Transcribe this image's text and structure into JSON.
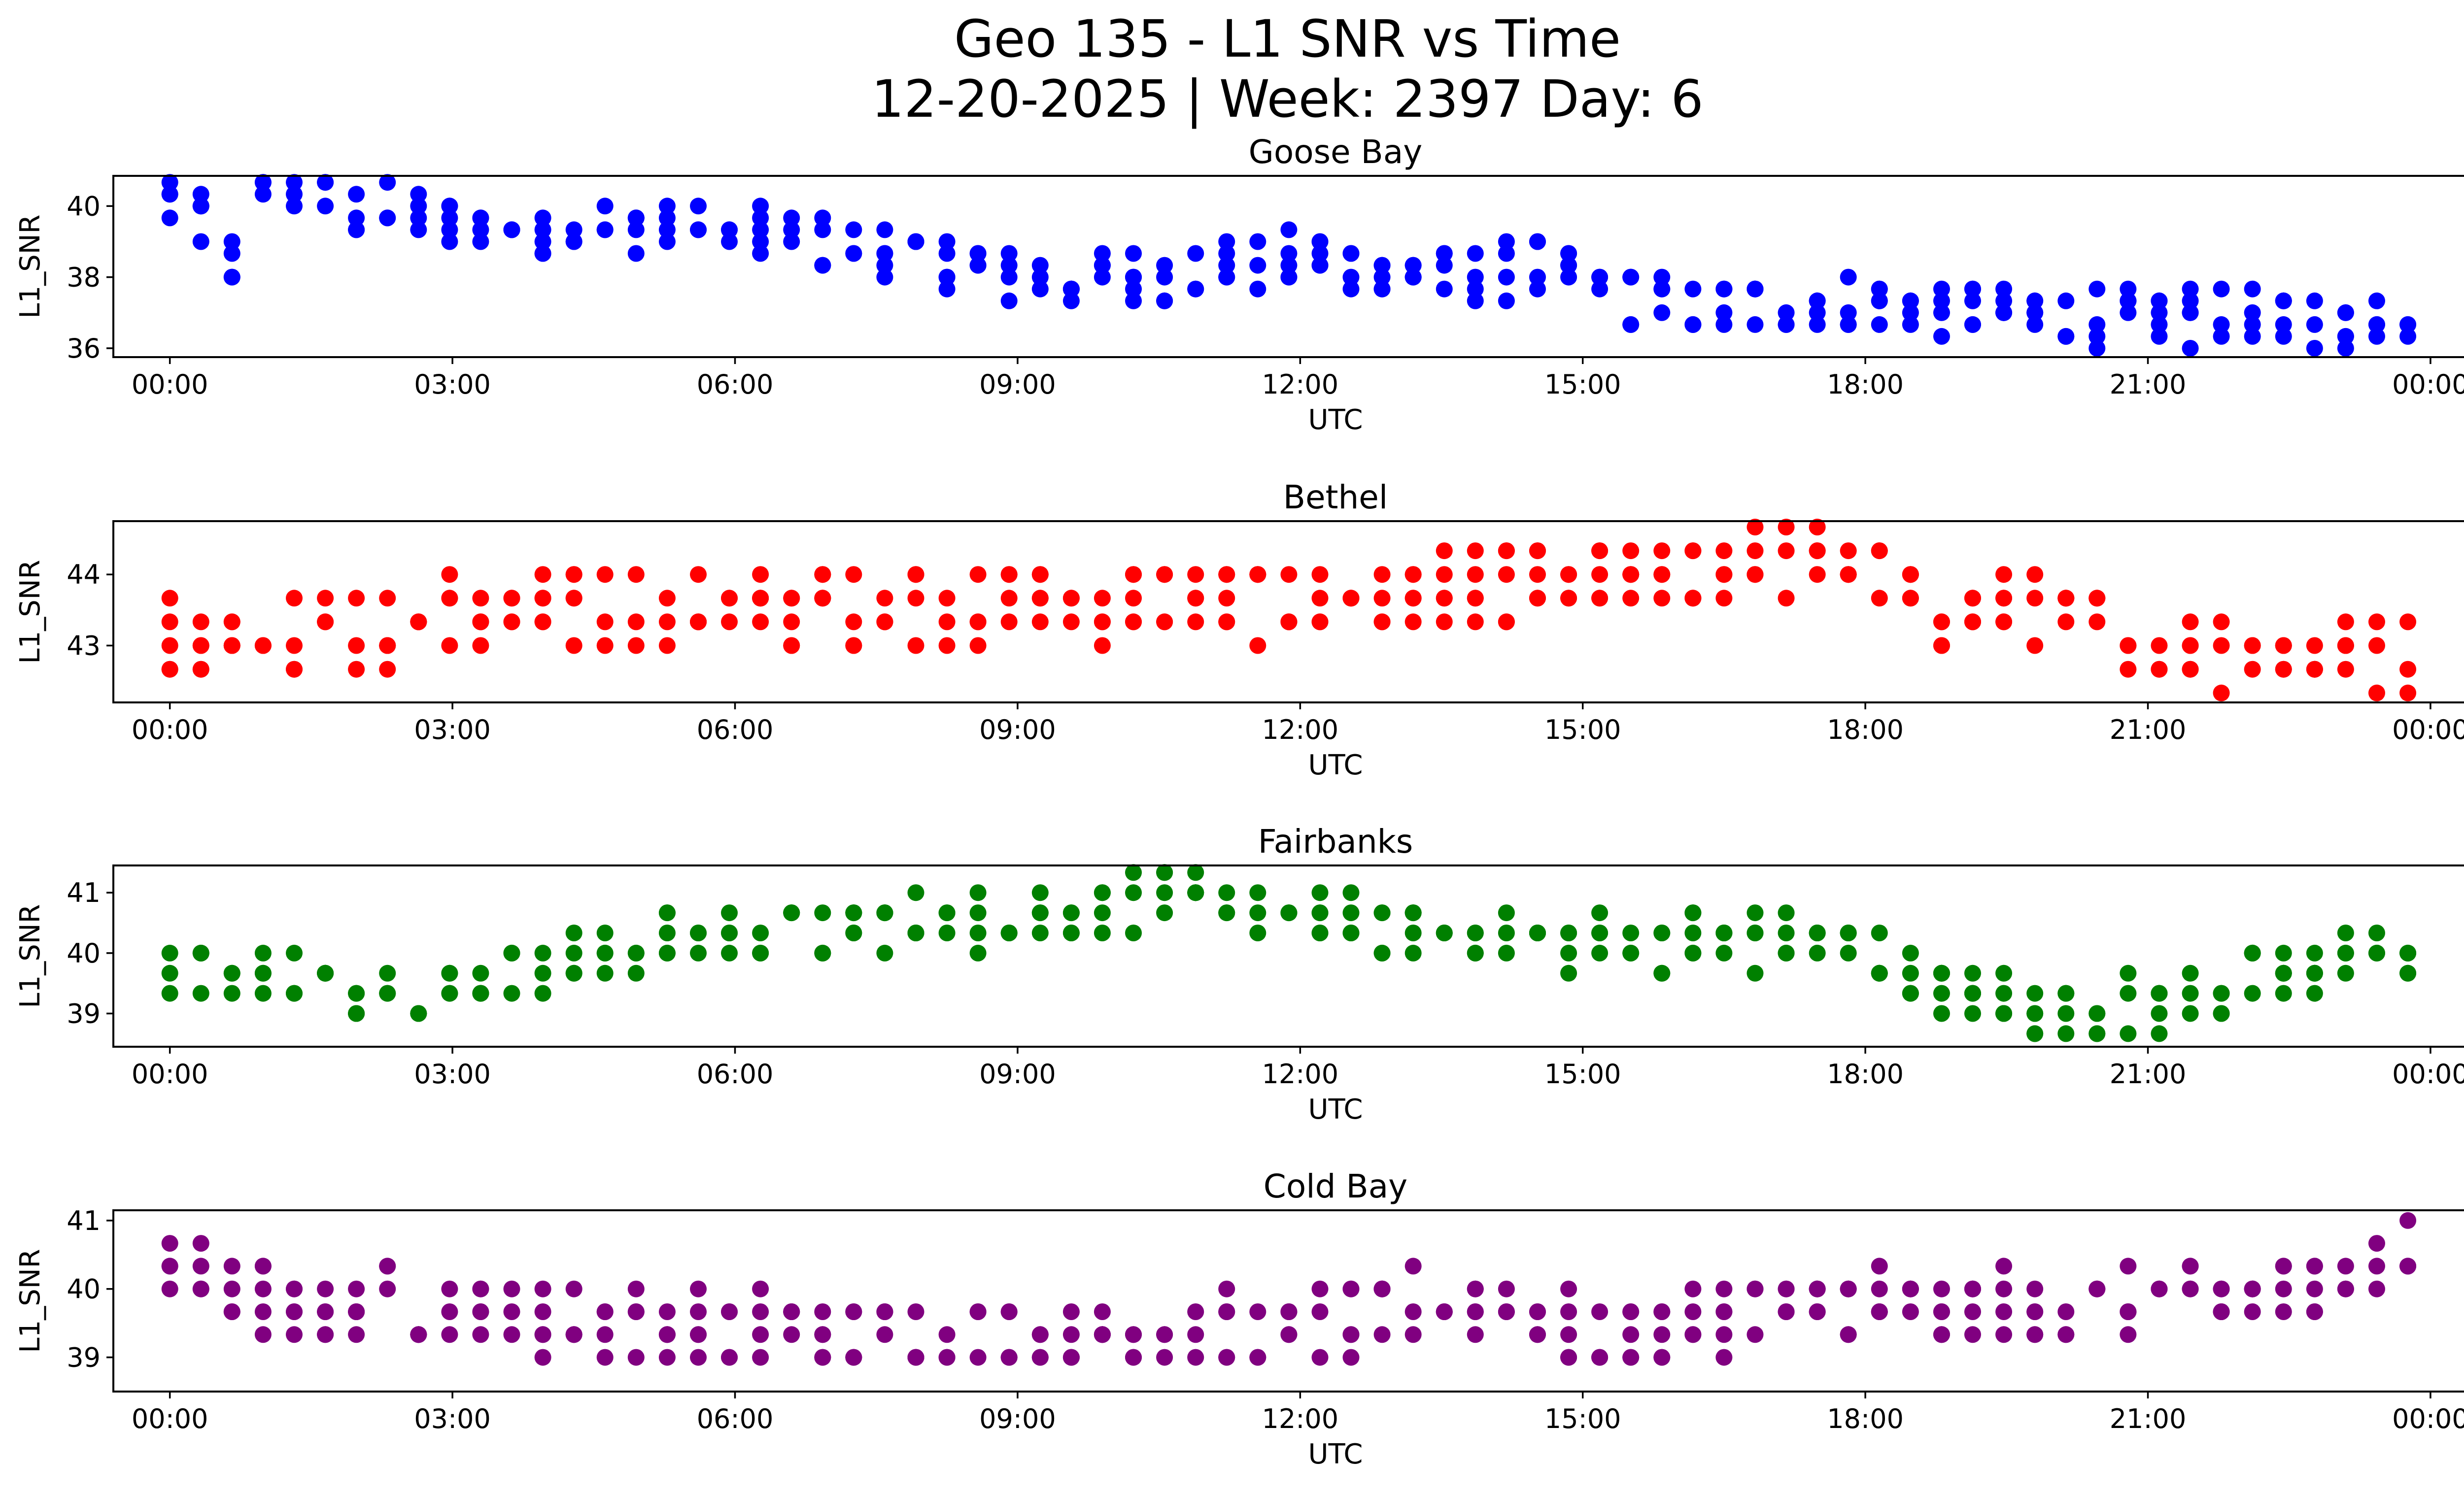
{
  "title_line1": "Geo 135 - L1 SNR vs Time",
  "title_line2": "12-20-2025 | Week: 2397 Day: 6",
  "chart_data": [
    {
      "type": "scatter",
      "title": "Goose Bay",
      "xlabel": "UTC",
      "ylabel": "L1_SNR",
      "color": "#0000ff",
      "xlim": [
        -0.6,
        25.35
      ],
      "ylim": [
        35.75,
        40.85
      ],
      "yticks": [
        36,
        38,
        40
      ],
      "xticks": [
        0,
        3,
        6,
        9,
        12,
        15,
        18,
        21,
        24
      ],
      "xticklabels": [
        "00:00",
        "03:00",
        "06:00",
        "09:00",
        "12:00",
        "15:00",
        "18:00",
        "21:00",
        "00:00"
      ],
      "trend": [
        [
          0,
          40.0
        ],
        [
          0.4,
          39.5
        ],
        [
          0.6,
          38.0
        ],
        [
          0.8,
          39.8
        ],
        [
          1.2,
          40.3
        ],
        [
          2.0,
          39.9
        ],
        [
          3.0,
          39.6
        ],
        [
          4.0,
          39.3
        ],
        [
          5.0,
          39.5
        ],
        [
          6.0,
          39.2
        ],
        [
          7.0,
          38.9
        ],
        [
          8.0,
          38.6
        ],
        [
          9.0,
          38.0
        ],
        [
          10.0,
          37.9
        ],
        [
          11.0,
          38.3
        ],
        [
          12.0,
          38.6
        ],
        [
          13.0,
          38.2
        ],
        [
          14.0,
          38.0
        ],
        [
          14.6,
          38.4
        ],
        [
          15.0,
          37.8
        ],
        [
          16.0,
          37.1
        ],
        [
          17.0,
          37.3
        ],
        [
          18.0,
          37.3
        ],
        [
          19.0,
          37.2
        ],
        [
          20.0,
          36.9
        ],
        [
          21.0,
          36.9
        ],
        [
          22.0,
          36.9
        ],
        [
          23.0,
          36.8
        ],
        [
          24.0,
          37.1
        ]
      ],
      "step": 0.33,
      "spread": 0.8
    },
    {
      "type": "scatter",
      "title": "Bethel",
      "xlabel": "UTC",
      "ylabel": "L1_SNR",
      "color": "#ff0000",
      "xlim": [
        -0.6,
        25.35
      ],
      "ylim": [
        42.2,
        44.75
      ],
      "yticks": [
        43,
        44
      ],
      "xticks": [
        0,
        3,
        6,
        9,
        12,
        15,
        18,
        21,
        24
      ],
      "xticklabels": [
        "00:00",
        "03:00",
        "06:00",
        "09:00",
        "12:00",
        "15:00",
        "18:00",
        "21:00",
        "00:00"
      ],
      "trend": [
        [
          0,
          43.15
        ],
        [
          2.5,
          43.2
        ],
        [
          3.0,
          43.5
        ],
        [
          6.0,
          43.55
        ],
        [
          9.0,
          43.6
        ],
        [
          12.0,
          43.6
        ],
        [
          14.0,
          43.75
        ],
        [
          16.0,
          43.9
        ],
        [
          17.0,
          44.25
        ],
        [
          18.0,
          44.1
        ],
        [
          18.5,
          43.6
        ],
        [
          20.0,
          43.4
        ],
        [
          21.0,
          43.1
        ],
        [
          22.5,
          42.85
        ],
        [
          24.0,
          42.85
        ]
      ],
      "step": 0.33,
      "spread": 0.5
    },
    {
      "type": "scatter",
      "title": "Fairbanks",
      "xlabel": "UTC",
      "ylabel": "L1_SNR",
      "color": "#008000",
      "xlim": [
        -0.6,
        25.35
      ],
      "ylim": [
        38.45,
        41.45
      ],
      "yticks": [
        39,
        40,
        41
      ],
      "xticks": [
        0,
        3,
        6,
        9,
        12,
        15,
        18,
        21,
        24
      ],
      "xticklabels": [
        "00:00",
        "03:00",
        "06:00",
        "09:00",
        "12:00",
        "15:00",
        "18:00",
        "21:00",
        "00:00"
      ],
      "trend": [
        [
          0,
          39.8
        ],
        [
          2.0,
          39.45
        ],
        [
          3.0,
          39.5
        ],
        [
          5.0,
          40.1
        ],
        [
          7.0,
          40.4
        ],
        [
          9.0,
          40.6
        ],
        [
          10.5,
          40.9
        ],
        [
          12.0,
          40.6
        ],
        [
          13.0,
          40.4
        ],
        [
          15.0,
          40.2
        ],
        [
          17.0,
          40.2
        ],
        [
          18.0,
          40.1
        ],
        [
          19.0,
          39.3
        ],
        [
          20.0,
          39.05
        ],
        [
          21.0,
          39.1
        ],
        [
          22.0,
          39.5
        ],
        [
          23.0,
          39.9
        ],
        [
          24.0,
          40.1
        ]
      ],
      "step": 0.33,
      "spread": 0.45
    },
    {
      "type": "scatter",
      "title": "Cold Bay",
      "xlabel": "UTC",
      "ylabel": "L1_SNR",
      "color": "#800080",
      "xlim": [
        -0.6,
        25.35
      ],
      "ylim": [
        38.5,
        41.15
      ],
      "yticks": [
        39,
        40,
        41
      ],
      "xticks": [
        0,
        3,
        6,
        9,
        12,
        15,
        18,
        21,
        24
      ],
      "xticklabels": [
        "00:00",
        "03:00",
        "06:00",
        "09:00",
        "12:00",
        "15:00",
        "18:00",
        "21:00",
        "00:00"
      ],
      "trend": [
        [
          0,
          40.3
        ],
        [
          1.0,
          39.85
        ],
        [
          3.0,
          39.75
        ],
        [
          4.0,
          39.6
        ],
        [
          6.0,
          39.4
        ],
        [
          8.0,
          39.35
        ],
        [
          10.0,
          39.35
        ],
        [
          12.0,
          39.4
        ],
        [
          13.0,
          39.7
        ],
        [
          14.0,
          39.8
        ],
        [
          15.0,
          39.4
        ],
        [
          16.0,
          39.45
        ],
        [
          17.0,
          39.75
        ],
        [
          18.0,
          39.8
        ],
        [
          20.0,
          39.7
        ],
        [
          22.0,
          39.8
        ],
        [
          23.0,
          40.2
        ],
        [
          24.0,
          40.5
        ]
      ],
      "step": 0.33,
      "spread": 0.5
    }
  ]
}
